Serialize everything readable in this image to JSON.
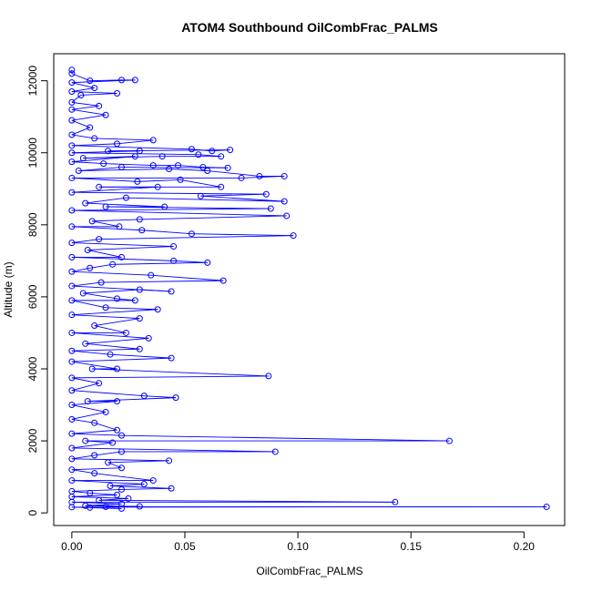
{
  "chart_data": {
    "type": "scatter",
    "title": "ATOM4 Southbound OilCombFrac_PALMS",
    "xlabel": "OilCombFrac_PALMS",
    "ylabel": "Altitude (m)",
    "xlim": [
      -0.008,
      0.218
    ],
    "ylim": [
      -350,
      12750
    ],
    "x_ticks": [
      0.0,
      0.05,
      0.1,
      0.15,
      0.2
    ],
    "x_tick_labels": [
      "0.00",
      "0.05",
      "0.10",
      "0.15",
      "0.20"
    ],
    "y_ticks": [
      0,
      2000,
      4000,
      6000,
      8000,
      10000,
      12000
    ],
    "y_tick_labels": [
      "0",
      "2000",
      "4000",
      "6000",
      "8000",
      "10000",
      "12000"
    ],
    "grid": false,
    "connected": true,
    "marker": "open-circle",
    "series_color": "#0000ff",
    "points": [
      {
        "x": 0.0,
        "y": 12300
      },
      {
        "x": 0.0,
        "y": 12200
      },
      {
        "x": 0.008,
        "y": 12000
      },
      {
        "x": 0.022,
        "y": 12020
      },
      {
        "x": 0.028,
        "y": 12020
      },
      {
        "x": 0.0,
        "y": 11950
      },
      {
        "x": 0.01,
        "y": 11800
      },
      {
        "x": 0.0,
        "y": 11700
      },
      {
        "x": 0.02,
        "y": 11650
      },
      {
        "x": 0.004,
        "y": 11600
      },
      {
        "x": 0.0,
        "y": 11400
      },
      {
        "x": 0.012,
        "y": 11300
      },
      {
        "x": 0.0,
        "y": 11200
      },
      {
        "x": 0.015,
        "y": 11050
      },
      {
        "x": 0.0,
        "y": 10900
      },
      {
        "x": 0.008,
        "y": 10700
      },
      {
        "x": 0.0,
        "y": 10500
      },
      {
        "x": 0.01,
        "y": 10400
      },
      {
        "x": 0.036,
        "y": 10350
      },
      {
        "x": 0.02,
        "y": 10250
      },
      {
        "x": 0.0,
        "y": 10200
      },
      {
        "x": 0.053,
        "y": 10100
      },
      {
        "x": 0.062,
        "y": 10050
      },
      {
        "x": 0.07,
        "y": 10080
      },
      {
        "x": 0.016,
        "y": 10050
      },
      {
        "x": 0.03,
        "y": 10050
      },
      {
        "x": 0.0,
        "y": 10000
      },
      {
        "x": 0.056,
        "y": 9950
      },
      {
        "x": 0.066,
        "y": 9900
      },
      {
        "x": 0.04,
        "y": 9900
      },
      {
        "x": 0.005,
        "y": 9850
      },
      {
        "x": 0.028,
        "y": 9900
      },
      {
        "x": 0.0,
        "y": 9750
      },
      {
        "x": 0.014,
        "y": 9700
      },
      {
        "x": 0.036,
        "y": 9650
      },
      {
        "x": 0.047,
        "y": 9650
      },
      {
        "x": 0.058,
        "y": 9600
      },
      {
        "x": 0.069,
        "y": 9580
      },
      {
        "x": 0.022,
        "y": 9600
      },
      {
        "x": 0.003,
        "y": 9500
      },
      {
        "x": 0.043,
        "y": 9550
      },
      {
        "x": 0.06,
        "y": 9500
      },
      {
        "x": 0.083,
        "y": 9350
      },
      {
        "x": 0.094,
        "y": 9350
      },
      {
        "x": 0.075,
        "y": 9300
      },
      {
        "x": 0.0,
        "y": 9300
      },
      {
        "x": 0.029,
        "y": 9200
      },
      {
        "x": 0.048,
        "y": 9250
      },
      {
        "x": 0.066,
        "y": 9050
      },
      {
        "x": 0.012,
        "y": 9050
      },
      {
        "x": 0.038,
        "y": 9050
      },
      {
        "x": 0.0,
        "y": 8900
      },
      {
        "x": 0.086,
        "y": 8850
      },
      {
        "x": 0.057,
        "y": 8800
      },
      {
        "x": 0.094,
        "y": 8650
      },
      {
        "x": 0.024,
        "y": 8750
      },
      {
        "x": 0.006,
        "y": 8600
      },
      {
        "x": 0.041,
        "y": 8500
      },
      {
        "x": 0.015,
        "y": 8500
      },
      {
        "x": 0.088,
        "y": 8450
      },
      {
        "x": 0.0,
        "y": 8400
      },
      {
        "x": 0.095,
        "y": 8250
      },
      {
        "x": 0.03,
        "y": 8150
      },
      {
        "x": 0.009,
        "y": 8100
      },
      {
        "x": 0.021,
        "y": 7950
      },
      {
        "x": 0.0,
        "y": 7950
      },
      {
        "x": 0.031,
        "y": 7850
      },
      {
        "x": 0.053,
        "y": 7750
      },
      {
        "x": 0.098,
        "y": 7700
      },
      {
        "x": 0.012,
        "y": 7600
      },
      {
        "x": 0.0,
        "y": 7500
      },
      {
        "x": 0.045,
        "y": 7400
      },
      {
        "x": 0.007,
        "y": 7300
      },
      {
        "x": 0.022,
        "y": 7100
      },
      {
        "x": 0.0,
        "y": 7100
      },
      {
        "x": 0.045,
        "y": 7000
      },
      {
        "x": 0.06,
        "y": 6950
      },
      {
        "x": 0.018,
        "y": 6900
      },
      {
        "x": 0.008,
        "y": 6800
      },
      {
        "x": 0.0,
        "y": 6700
      },
      {
        "x": 0.035,
        "y": 6600
      },
      {
        "x": 0.067,
        "y": 6450
      },
      {
        "x": 0.013,
        "y": 6400
      },
      {
        "x": 0.0,
        "y": 6300
      },
      {
        "x": 0.044,
        "y": 6150
      },
      {
        "x": 0.03,
        "y": 6200
      },
      {
        "x": 0.005,
        "y": 6100
      },
      {
        "x": 0.02,
        "y": 5950
      },
      {
        "x": 0.028,
        "y": 5900
      },
      {
        "x": 0.0,
        "y": 5900
      },
      {
        "x": 0.015,
        "y": 5700
      },
      {
        "x": 0.038,
        "y": 5650
      },
      {
        "x": 0.0,
        "y": 5500
      },
      {
        "x": 0.03,
        "y": 5400
      },
      {
        "x": 0.01,
        "y": 5200
      },
      {
        "x": 0.024,
        "y": 5000
      },
      {
        "x": 0.0,
        "y": 5000
      },
      {
        "x": 0.034,
        "y": 4850
      },
      {
        "x": 0.006,
        "y": 4700
      },
      {
        "x": 0.03,
        "y": 4550
      },
      {
        "x": 0.0,
        "y": 4500
      },
      {
        "x": 0.017,
        "y": 4400
      },
      {
        "x": 0.044,
        "y": 4300
      },
      {
        "x": 0.0,
        "y": 4200
      },
      {
        "x": 0.02,
        "y": 4000
      },
      {
        "x": 0.009,
        "y": 4000
      },
      {
        "x": 0.087,
        "y": 3800
      },
      {
        "x": 0.0,
        "y": 3750
      },
      {
        "x": 0.012,
        "y": 3600
      },
      {
        "x": 0.0,
        "y": 3400
      },
      {
        "x": 0.032,
        "y": 3250
      },
      {
        "x": 0.046,
        "y": 3200
      },
      {
        "x": 0.007,
        "y": 3100
      },
      {
        "x": 0.02,
        "y": 3100
      },
      {
        "x": 0.0,
        "y": 3000
      },
      {
        "x": 0.015,
        "y": 2800
      },
      {
        "x": 0.0,
        "y": 2600
      },
      {
        "x": 0.01,
        "y": 2500
      },
      {
        "x": 0.02,
        "y": 2300
      },
      {
        "x": 0.0,
        "y": 2200
      },
      {
        "x": 0.022,
        "y": 2150
      },
      {
        "x": 0.167,
        "y": 2000
      },
      {
        "x": 0.006,
        "y": 2000
      },
      {
        "x": 0.018,
        "y": 1950
      },
      {
        "x": 0.0,
        "y": 1800
      },
      {
        "x": 0.09,
        "y": 1700
      },
      {
        "x": 0.022,
        "y": 1700
      },
      {
        "x": 0.01,
        "y": 1600
      },
      {
        "x": 0.0,
        "y": 1500
      },
      {
        "x": 0.043,
        "y": 1450
      },
      {
        "x": 0.016,
        "y": 1400
      },
      {
        "x": 0.022,
        "y": 1250
      },
      {
        "x": 0.0,
        "y": 1200
      },
      {
        "x": 0.01,
        "y": 1100
      },
      {
        "x": 0.036,
        "y": 900
      },
      {
        "x": 0.0,
        "y": 900
      },
      {
        "x": 0.032,
        "y": 800
      },
      {
        "x": 0.017,
        "y": 750
      },
      {
        "x": 0.044,
        "y": 680
      },
      {
        "x": 0.022,
        "y": 650
      },
      {
        "x": 0.0,
        "y": 600
      },
      {
        "x": 0.008,
        "y": 550
      },
      {
        "x": 0.02,
        "y": 500
      },
      {
        "x": 0.0,
        "y": 450
      },
      {
        "x": 0.025,
        "y": 400
      },
      {
        "x": 0.012,
        "y": 350
      },
      {
        "x": 0.143,
        "y": 300
      },
      {
        "x": 0.0,
        "y": 300
      },
      {
        "x": 0.022,
        "y": 250
      },
      {
        "x": 0.006,
        "y": 200
      },
      {
        "x": 0.03,
        "y": 180
      },
      {
        "x": 0.015,
        "y": 170
      },
      {
        "x": 0.21,
        "y": 170
      },
      {
        "x": 0.0,
        "y": 160
      },
      {
        "x": 0.022,
        "y": 120
      },
      {
        "x": 0.008,
        "y": 150
      }
    ]
  }
}
